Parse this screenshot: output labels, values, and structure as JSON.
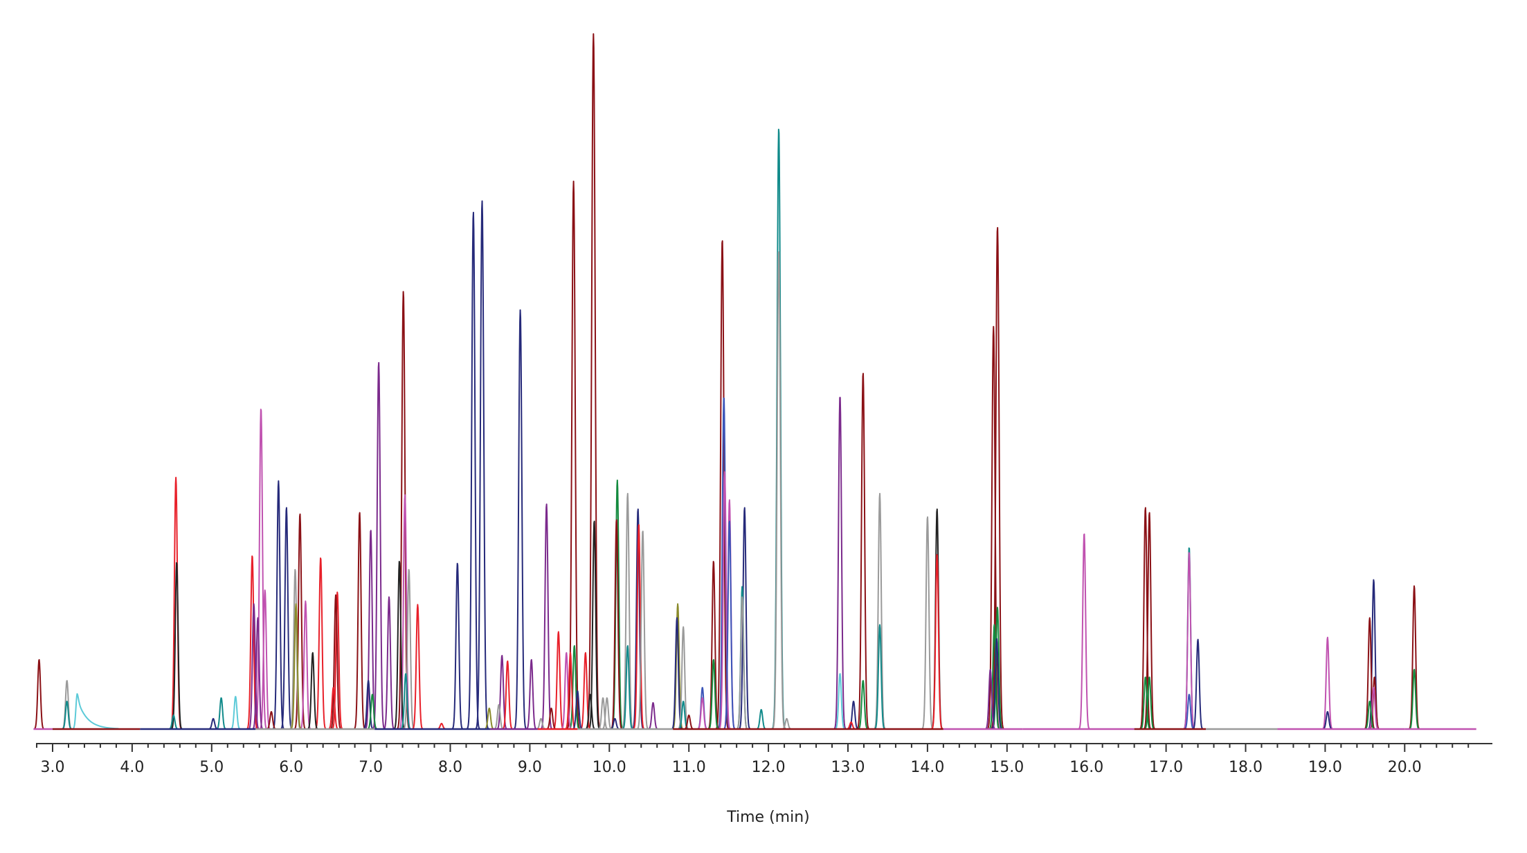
{
  "chart_data": {
    "type": "line",
    "subtype": "chromatogram-overlay",
    "title": "",
    "xlabel": "Time (min)",
    "ylabel": "",
    "xlim": [
      2.8,
      21.0
    ],
    "ylim": [
      0,
      100
    ],
    "y_units": "relative intensity (% of tallest peak, estimated)",
    "grid": false,
    "legend": null,
    "x_major_ticks": [
      3.0,
      4.0,
      5.0,
      6.0,
      7.0,
      8.0,
      9.0,
      10.0,
      11.0,
      12.0,
      13.0,
      14.0,
      15.0,
      16.0,
      17.0,
      18.0,
      19.0,
      20.0
    ],
    "x_tick_labels": [
      "3.0",
      "4.0",
      "5.0",
      "6.0",
      "7.0",
      "8.0",
      "9.0",
      "10.0",
      "11.0",
      "12.0",
      "13.0",
      "14.0",
      "15.0",
      "16.0",
      "17.0",
      "18.0",
      "19.0",
      "20.0"
    ],
    "x_minor_tick_step": 0.2,
    "series_colors": {
      "darkred": "#8b1116",
      "red": "#e8202a",
      "navy": "#262a7a",
      "purple": "#7b2a8c",
      "pink": "#c052b0",
      "teal": "#108a8a",
      "gray": "#9a9a9a",
      "cyan": "#5ccad8",
      "green": "#138a3e",
      "black": "#222222",
      "olive": "#8a8a2a",
      "blue": "#3b55b8"
    },
    "peaks": [
      {
        "t": 2.83,
        "h": 10.0,
        "color": "darkred"
      },
      {
        "t": 3.18,
        "h": 7.0,
        "color": "gray"
      },
      {
        "t": 3.18,
        "h": 4.0,
        "color": "teal"
      },
      {
        "t": 3.31,
        "h": 5.1,
        "color": "cyan",
        "tail": true
      },
      {
        "t": 4.55,
        "h": 36.2,
        "color": "red"
      },
      {
        "t": 4.56,
        "h": 24.0,
        "color": "black"
      },
      {
        "t": 4.52,
        "h": 2.0,
        "color": "teal"
      },
      {
        "t": 5.02,
        "h": 1.5,
        "color": "navy"
      },
      {
        "t": 5.12,
        "h": 4.5,
        "color": "teal"
      },
      {
        "t": 5.3,
        "h": 4.7,
        "color": "cyan"
      },
      {
        "t": 5.51,
        "h": 25.0,
        "color": "red"
      },
      {
        "t": 5.53,
        "h": 18.0,
        "color": "purple"
      },
      {
        "t": 5.58,
        "h": 16.0,
        "color": "purple"
      },
      {
        "t": 5.62,
        "h": 46.2,
        "color": "pink"
      },
      {
        "t": 5.67,
        "h": 20.0,
        "color": "pink"
      },
      {
        "t": 5.75,
        "h": 2.5,
        "color": "darkred"
      },
      {
        "t": 5.84,
        "h": 35.7,
        "color": "navy"
      },
      {
        "t": 5.94,
        "h": 31.9,
        "color": "navy"
      },
      {
        "t": 6.05,
        "h": 23.0,
        "color": "gray"
      },
      {
        "t": 6.06,
        "h": 18.0,
        "color": "olive"
      },
      {
        "t": 6.11,
        "h": 31.0,
        "color": "darkred"
      },
      {
        "t": 6.18,
        "h": 18.4,
        "color": "pink"
      },
      {
        "t": 6.27,
        "h": 11.0,
        "color": "black"
      },
      {
        "t": 6.37,
        "h": 24.7,
        "color": "red"
      },
      {
        "t": 6.53,
        "h": 6.0,
        "color": "red"
      },
      {
        "t": 6.58,
        "h": 19.7,
        "color": "red"
      },
      {
        "t": 6.56,
        "h": 19.3,
        "color": "darkred"
      },
      {
        "t": 6.86,
        "h": 31.2,
        "color": "darkred"
      },
      {
        "t": 6.97,
        "h": 7.0,
        "color": "navy"
      },
      {
        "t": 7.0,
        "h": 28.7,
        "color": "purple"
      },
      {
        "t": 7.02,
        "h": 5.0,
        "color": "green"
      },
      {
        "t": 7.1,
        "h": 52.8,
        "color": "purple"
      },
      {
        "t": 7.23,
        "h": 19.0,
        "color": "purple"
      },
      {
        "t": 7.36,
        "h": 24.2,
        "color": "black"
      },
      {
        "t": 7.41,
        "h": 63.0,
        "color": "darkred"
      },
      {
        "t": 7.43,
        "h": 33.7,
        "color": "pink"
      },
      {
        "t": 7.44,
        "h": 8.0,
        "color": "teal"
      },
      {
        "t": 7.48,
        "h": 23.0,
        "color": "gray"
      },
      {
        "t": 7.59,
        "h": 17.9,
        "color": "red"
      },
      {
        "t": 7.89,
        "h": 0.8,
        "color": "red"
      },
      {
        "t": 8.09,
        "h": 23.9,
        "color": "navy"
      },
      {
        "t": 8.29,
        "h": 74.4,
        "color": "navy"
      },
      {
        "t": 8.4,
        "h": 76.0,
        "color": "navy"
      },
      {
        "t": 8.49,
        "h": 3.0,
        "color": "olive"
      },
      {
        "t": 8.61,
        "h": 3.5,
        "color": "gray"
      },
      {
        "t": 8.65,
        "h": 10.6,
        "color": "purple"
      },
      {
        "t": 8.72,
        "h": 9.8,
        "color": "red"
      },
      {
        "t": 8.88,
        "h": 60.3,
        "color": "navy"
      },
      {
        "t": 9.02,
        "h": 10.0,
        "color": "purple"
      },
      {
        "t": 9.14,
        "h": 1.5,
        "color": "gray"
      },
      {
        "t": 9.21,
        "h": 32.4,
        "color": "purple"
      },
      {
        "t": 9.27,
        "h": 3.0,
        "color": "darkred"
      },
      {
        "t": 9.36,
        "h": 14.0,
        "color": "red"
      },
      {
        "t": 9.46,
        "h": 11.0,
        "color": "pink"
      },
      {
        "t": 9.51,
        "h": 11.0,
        "color": "red"
      },
      {
        "t": 9.55,
        "h": 78.8,
        "color": "darkred"
      },
      {
        "t": 9.56,
        "h": 12.0,
        "color": "green"
      },
      {
        "t": 9.6,
        "h": 5.5,
        "color": "navy"
      },
      {
        "t": 9.7,
        "h": 11.0,
        "color": "red"
      },
      {
        "t": 9.76,
        "h": 5.0,
        "color": "black"
      },
      {
        "t": 9.8,
        "h": 100.0,
        "color": "darkred"
      },
      {
        "t": 9.81,
        "h": 30.0,
        "color": "black"
      },
      {
        "t": 9.92,
        "h": 4.5,
        "color": "gray"
      },
      {
        "t": 9.97,
        "h": 4.5,
        "color": "gray"
      },
      {
        "t": 10.07,
        "h": 1.5,
        "color": "navy"
      },
      {
        "t": 10.09,
        "h": 30.2,
        "color": "darkred"
      },
      {
        "t": 10.1,
        "h": 35.8,
        "color": "green"
      },
      {
        "t": 10.23,
        "h": 33.9,
        "color": "gray"
      },
      {
        "t": 10.23,
        "h": 12.0,
        "color": "teal"
      },
      {
        "t": 10.36,
        "h": 31.7,
        "color": "navy"
      },
      {
        "t": 10.37,
        "h": 29.5,
        "color": "red"
      },
      {
        "t": 10.42,
        "h": 28.6,
        "color": "gray"
      },
      {
        "t": 10.55,
        "h": 3.8,
        "color": "purple"
      },
      {
        "t": 10.85,
        "h": 16.0,
        "color": "navy"
      },
      {
        "t": 10.86,
        "h": 18.0,
        "color": "olive"
      },
      {
        "t": 10.93,
        "h": 14.7,
        "color": "gray"
      },
      {
        "t": 10.93,
        "h": 4.0,
        "color": "teal"
      },
      {
        "t": 11.0,
        "h": 2.0,
        "color": "darkred"
      },
      {
        "t": 11.17,
        "h": 6.0,
        "color": "blue"
      },
      {
        "t": 11.17,
        "h": 4.5,
        "color": "pink"
      },
      {
        "t": 11.31,
        "h": 24.2,
        "color": "darkred"
      },
      {
        "t": 11.31,
        "h": 10.0,
        "color": "green"
      },
      {
        "t": 11.42,
        "h": 70.5,
        "color": "darkred"
      },
      {
        "t": 11.44,
        "h": 47.9,
        "color": "blue"
      },
      {
        "t": 11.45,
        "h": 37.0,
        "color": "pink"
      },
      {
        "t": 11.51,
        "h": 33.0,
        "color": "pink"
      },
      {
        "t": 11.51,
        "h": 30.0,
        "color": "blue"
      },
      {
        "t": 11.67,
        "h": 20.5,
        "color": "teal"
      },
      {
        "t": 11.67,
        "h": 19.0,
        "color": "gray"
      },
      {
        "t": 11.7,
        "h": 31.9,
        "color": "navy"
      },
      {
        "t": 11.91,
        "h": 2.8,
        "color": "teal"
      },
      {
        "t": 12.13,
        "h": 86.5,
        "color": "teal"
      },
      {
        "t": 12.13,
        "h": 69.0,
        "color": "gray"
      },
      {
        "t": 12.23,
        "h": 1.5,
        "color": "gray"
      },
      {
        "t": 12.9,
        "h": 48.0,
        "color": "purple"
      },
      {
        "t": 12.9,
        "h": 8.0,
        "color": "cyan"
      },
      {
        "t": 13.07,
        "h": 4.0,
        "color": "navy"
      },
      {
        "t": 13.04,
        "h": 1.0,
        "color": "red"
      },
      {
        "t": 13.19,
        "h": 51.3,
        "color": "darkred"
      },
      {
        "t": 13.19,
        "h": 7.0,
        "color": "green"
      },
      {
        "t": 13.4,
        "h": 33.9,
        "color": "gray"
      },
      {
        "t": 13.4,
        "h": 15.0,
        "color": "teal"
      },
      {
        "t": 14.0,
        "h": 30.6,
        "color": "gray"
      },
      {
        "t": 14.12,
        "h": 31.7,
        "color": "black"
      },
      {
        "t": 14.12,
        "h": 25.2,
        "color": "red"
      },
      {
        "t": 14.79,
        "h": 8.6,
        "color": "purple"
      },
      {
        "t": 14.83,
        "h": 57.9,
        "color": "darkred"
      },
      {
        "t": 14.84,
        "h": 15.0,
        "color": "green"
      },
      {
        "t": 14.88,
        "h": 72.3,
        "color": "darkred"
      },
      {
        "t": 14.88,
        "h": 17.5,
        "color": "green"
      },
      {
        "t": 14.87,
        "h": 13.0,
        "color": "navy"
      },
      {
        "t": 15.97,
        "h": 28.2,
        "color": "pink"
      },
      {
        "t": 16.74,
        "h": 31.9,
        "color": "darkred"
      },
      {
        "t": 16.74,
        "h": 7.5,
        "color": "green"
      },
      {
        "t": 16.79,
        "h": 31.2,
        "color": "darkred"
      },
      {
        "t": 16.79,
        "h": 7.5,
        "color": "green"
      },
      {
        "t": 17.29,
        "h": 26.2,
        "color": "teal"
      },
      {
        "t": 17.29,
        "h": 25.5,
        "color": "pink"
      },
      {
        "t": 17.29,
        "h": 5.0,
        "color": "blue"
      },
      {
        "t": 17.4,
        "h": 12.9,
        "color": "navy"
      },
      {
        "t": 19.03,
        "h": 13.2,
        "color": "pink"
      },
      {
        "t": 19.03,
        "h": 2.5,
        "color": "navy"
      },
      {
        "t": 19.56,
        "h": 16.0,
        "color": "darkred"
      },
      {
        "t": 19.56,
        "h": 4.0,
        "color": "green"
      },
      {
        "t": 19.61,
        "h": 21.5,
        "color": "navy"
      },
      {
        "t": 19.62,
        "h": 7.5,
        "color": "darkred"
      },
      {
        "t": 19.61,
        "h": 6.0,
        "color": "pink"
      },
      {
        "t": 20.12,
        "h": 20.6,
        "color": "darkred"
      },
      {
        "t": 20.12,
        "h": 8.6,
        "color": "green"
      }
    ]
  },
  "axis": {
    "x_title": "Time (min)"
  }
}
